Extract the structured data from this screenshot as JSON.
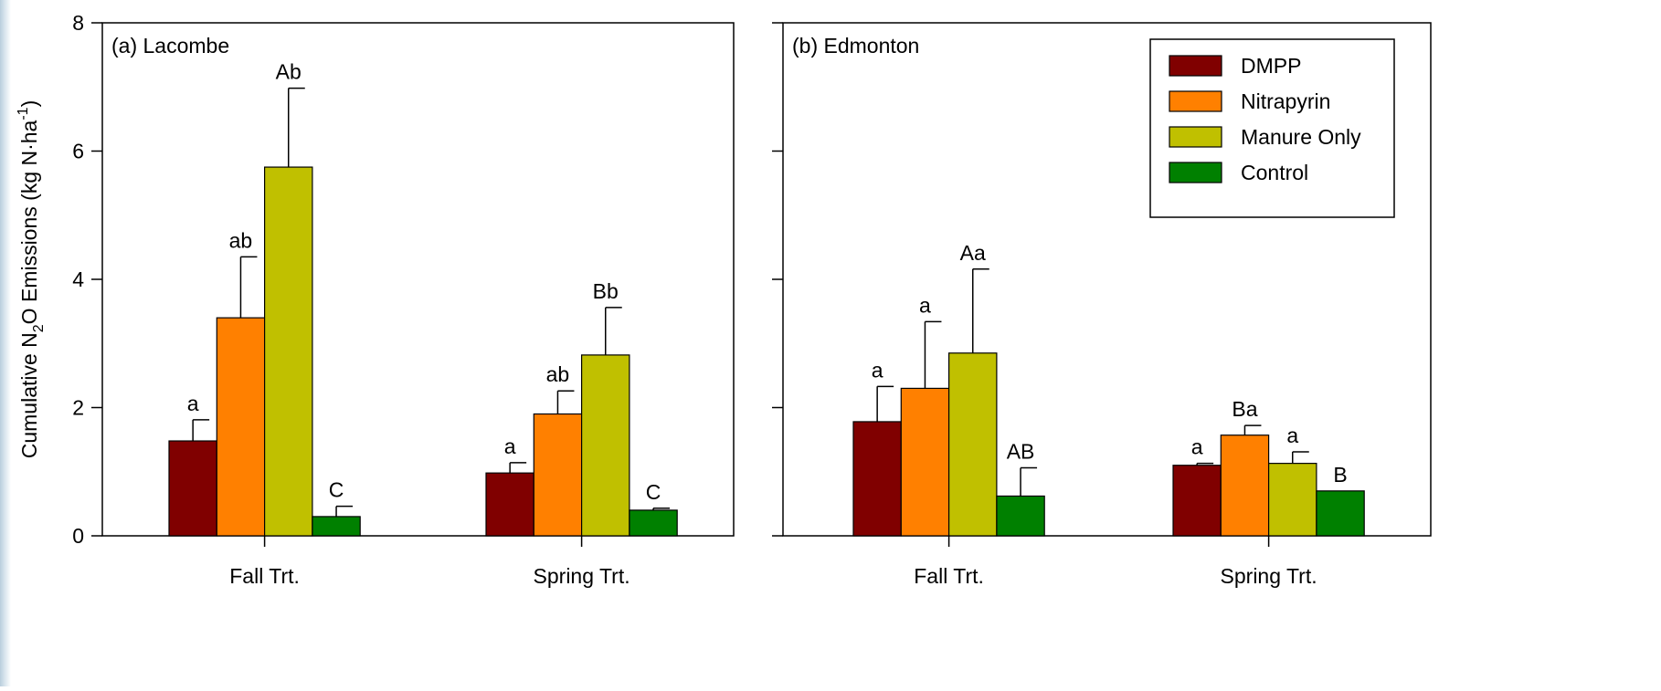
{
  "chart_data": {
    "type": "bar",
    "ylabel_parts": {
      "pre": "Cumulative N",
      "sub": "2",
      "mid": "O Emissions (kg N·ha",
      "sup": "-1",
      "post": ")"
    },
    "ylim": [
      0,
      8
    ],
    "yticks": [
      "0",
      "2",
      "4",
      "6",
      "8"
    ],
    "categories": [
      "Fall Trt.",
      "Spring Trt."
    ],
    "legend": {
      "placement": "top-right of panel (b)",
      "entries": [
        {
          "name": "DMPP",
          "color": "#800000"
        },
        {
          "name": "Nitrapyrin",
          "color": "#ff8000"
        },
        {
          "name": "Manure Only",
          "color": "#c0c000"
        },
        {
          "name": "Control",
          "color": "#008000"
        }
      ]
    },
    "panels": [
      {
        "title": "(a) Lacombe",
        "groups": [
          {
            "category": "Fall Trt.",
            "bars": [
              {
                "series": "DMPP",
                "value": 1.48,
                "error": 0.33,
                "label": "a"
              },
              {
                "series": "Nitrapyrin",
                "value": 3.4,
                "error": 0.95,
                "label": "ab"
              },
              {
                "series": "Manure Only",
                "value": 5.75,
                "error": 1.23,
                "label": "Ab"
              },
              {
                "series": "Control",
                "value": 0.3,
                "error": 0.16,
                "label": "C"
              }
            ]
          },
          {
            "category": "Spring Trt.",
            "bars": [
              {
                "series": "DMPP",
                "value": 0.98,
                "error": 0.16,
                "label": "a"
              },
              {
                "series": "Nitrapyrin",
                "value": 1.9,
                "error": 0.36,
                "label": "ab"
              },
              {
                "series": "Manure Only",
                "value": 2.82,
                "error": 0.74,
                "label": "Bb"
              },
              {
                "series": "Control",
                "value": 0.4,
                "error": 0.03,
                "label": "C"
              }
            ]
          }
        ]
      },
      {
        "title": "(b) Edmonton",
        "groups": [
          {
            "category": "Fall Trt.",
            "bars": [
              {
                "series": "DMPP",
                "value": 1.78,
                "error": 0.55,
                "label": "a"
              },
              {
                "series": "Nitrapyrin",
                "value": 2.3,
                "error": 1.04,
                "label": "a"
              },
              {
                "series": "Manure Only",
                "value": 2.85,
                "error": 1.31,
                "label": "Aa"
              },
              {
                "series": "Control",
                "value": 0.62,
                "error": 0.44,
                "label": "AB"
              }
            ]
          },
          {
            "category": "Spring Trt.",
            "bars": [
              {
                "series": "DMPP",
                "value": 1.1,
                "error": 0.03,
                "label": "a"
              },
              {
                "series": "Nitrapyrin",
                "value": 1.57,
                "error": 0.15,
                "label": "Ba"
              },
              {
                "series": "Manure Only",
                "value": 1.13,
                "error": 0.18,
                "label": "a"
              },
              {
                "series": "Control",
                "value": 0.7,
                "error": 0.0,
                "label": "B"
              }
            ]
          }
        ]
      }
    ]
  }
}
